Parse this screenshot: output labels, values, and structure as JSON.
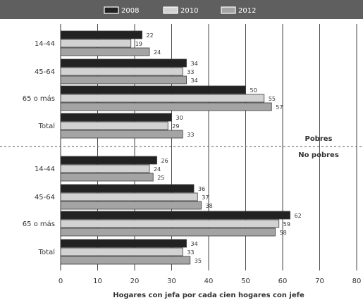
{
  "colors": {
    "legend_bg": "#5f5f5f",
    "series_2008": "#222222",
    "series_2010": "#d2d2d2",
    "series_2012": "#a4a4a4",
    "grid": "#333333",
    "divider": "#777777",
    "text": "#333333"
  },
  "chart_data": {
    "type": "bar",
    "orientation": "horizontal",
    "xlabel": "Hogares con jefa por cada cien hogares con jefe",
    "xlim": [
      0,
      80
    ],
    "xticks": [
      "0",
      "10",
      "20",
      "30",
      "40",
      "50",
      "60",
      "70",
      "80"
    ],
    "grid": "vertical",
    "legend_position": "top",
    "groups": [
      {
        "label": "Pobres",
        "categories": [
          "14-44",
          "45-64",
          "65 o más",
          "Total"
        ],
        "series": [
          {
            "name": "2008",
            "values": [
              22,
              34,
              50,
              30
            ]
          },
          {
            "name": "2010",
            "values": [
              19,
              33,
              55,
              29
            ]
          },
          {
            "name": "2012",
            "values": [
              24,
              34,
              57,
              33
            ]
          }
        ]
      },
      {
        "label": "No pobres",
        "categories": [
          "14-44",
          "45-64",
          "65 o más",
          "Total"
        ],
        "series": [
          {
            "name": "2008",
            "values": [
              26,
              36,
              62,
              34
            ]
          },
          {
            "name": "2010",
            "values": [
              24,
              37,
              59,
              33
            ]
          },
          {
            "name": "2012",
            "values": [
              25,
              38,
              58,
              35
            ]
          }
        ]
      }
    ]
  }
}
